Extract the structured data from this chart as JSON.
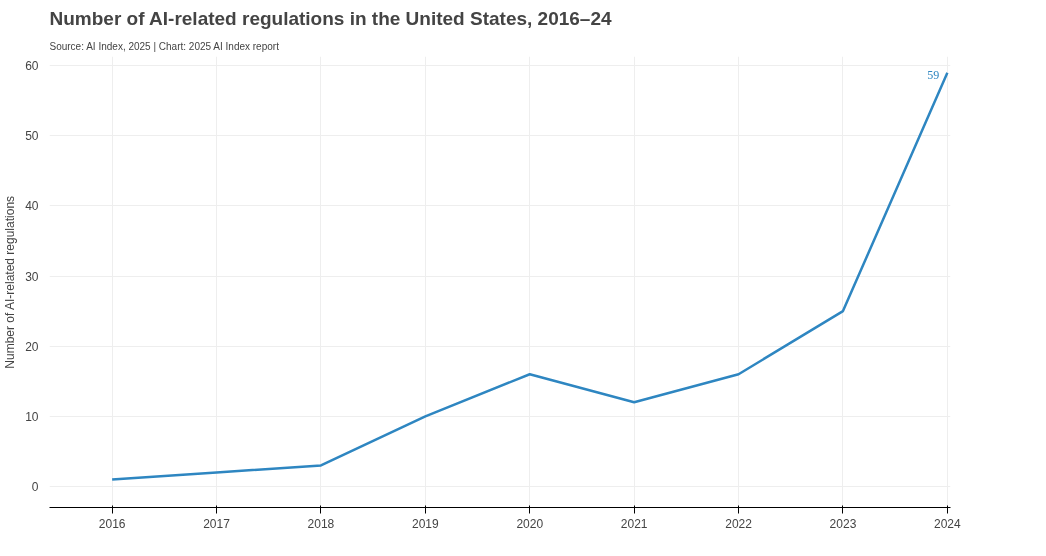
{
  "chart_data": {
    "type": "line",
    "title": "Number of AI-related regulations in the United States, 2016–24",
    "subtitle": "Source: AI Index, 2025 | Chart: 2025 AI Index report",
    "ylabel": "Number of AI-related regulations",
    "x": [
      2016,
      2017,
      2018,
      2019,
      2020,
      2021,
      2022,
      2023,
      2024
    ],
    "series": [
      {
        "color": "#2e86c1",
        "values": [
          1,
          2,
          3,
          10,
          16,
          12,
          16,
          25,
          59
        ],
        "value_labels": [
          null,
          null,
          null,
          null,
          null,
          null,
          null,
          null,
          "59"
        ]
      }
    ],
    "xlim": [
      2015.4,
      2024.03
    ],
    "ylim": [
      -3,
      61.3
    ],
    "xticks": [
      2016,
      2017,
      2018,
      2019,
      2020,
      2021,
      2022,
      2023,
      2024
    ],
    "yticks": [
      0,
      10,
      20,
      30,
      40,
      50,
      60
    ],
    "grid": true,
    "marker": "none",
    "line_style": "solid"
  }
}
